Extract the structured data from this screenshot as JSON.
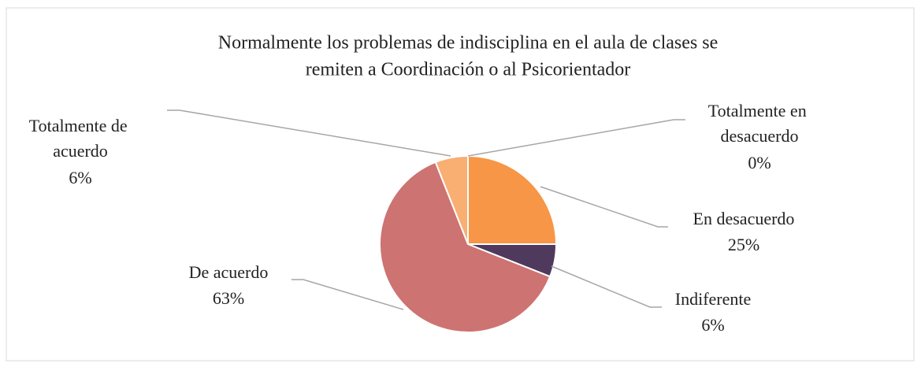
{
  "chart_data": {
    "type": "pie",
    "title": [
      "Normalmente los problemas de indisciplina en el aula de clases se",
      "remiten a Coordinación o al Psicorientador"
    ],
    "categories": [
      "Totalmente en desacuerdo",
      "En desacuerdo",
      "Indiferente",
      "De acuerdo",
      "Totalmente de acuerdo"
    ],
    "values": [
      0,
      25,
      6,
      63,
      6
    ],
    "value_labels": [
      "0%",
      "25%",
      "6%",
      "63%",
      "6%"
    ],
    "colors": [
      "#8064a2",
      "#f79646",
      "#4f3a5e",
      "#cd7371",
      "#f9ae72"
    ]
  }
}
